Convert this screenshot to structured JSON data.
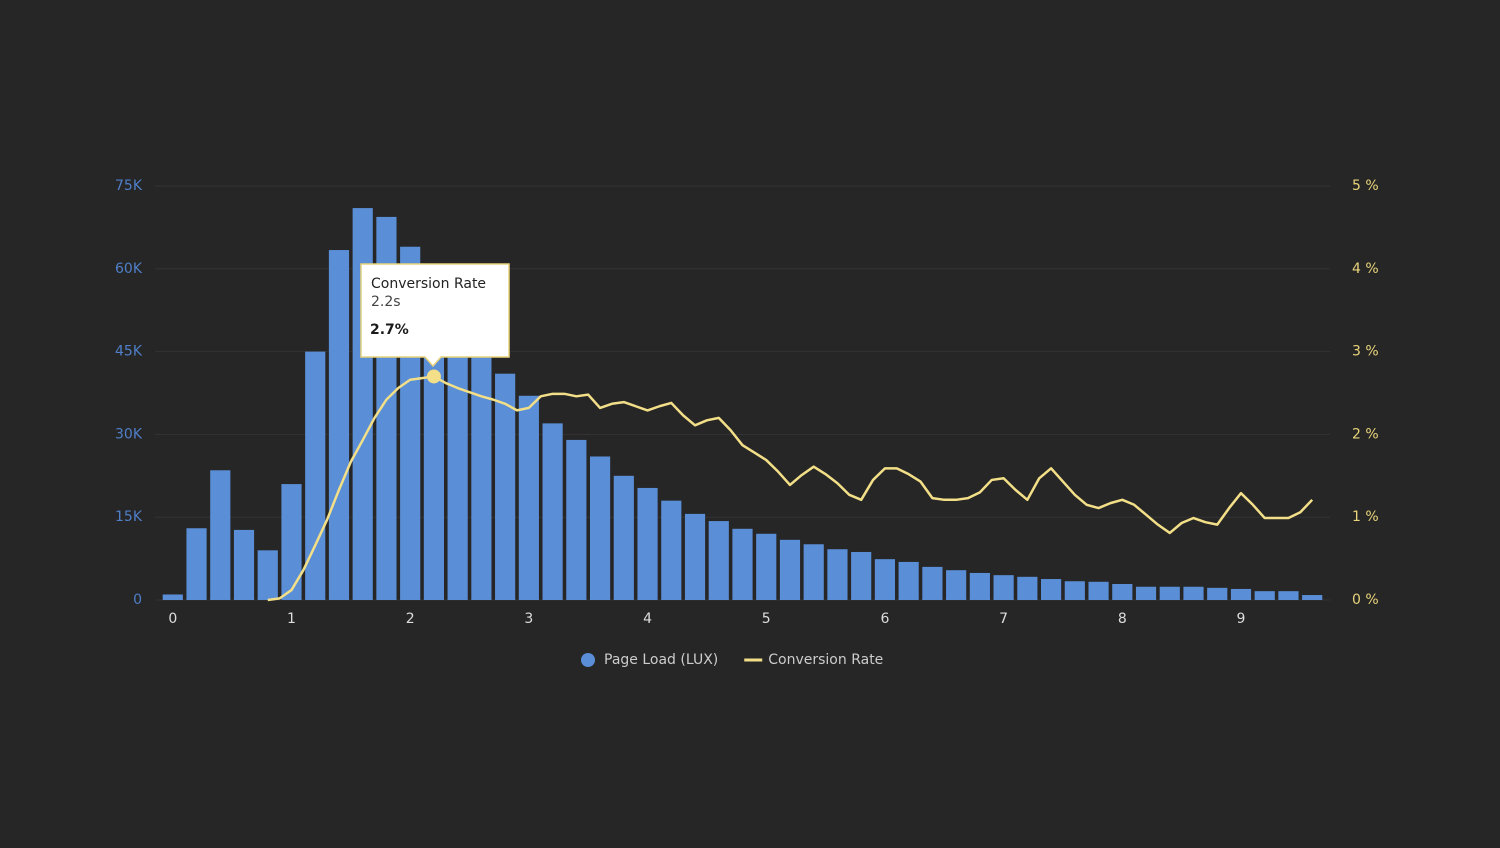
{
  "chart_data": {
    "type": "bar",
    "xlim": [
      -0.15,
      9.75
    ],
    "xticks": [
      0,
      1,
      2,
      3,
      4,
      5,
      6,
      7,
      8,
      9
    ],
    "ylim": [
      0,
      75000
    ],
    "yticks": [
      {
        "value": 0,
        "label": "0"
      },
      {
        "value": 15000,
        "label": "15K"
      },
      {
        "value": 30000,
        "label": "30K"
      },
      {
        "value": 45000,
        "label": "45K"
      },
      {
        "value": 60000,
        "label": "60K"
      },
      {
        "value": 75000,
        "label": "75K"
      }
    ],
    "y2lim": [
      0,
      5
    ],
    "y2ticks": [
      {
        "value": 0,
        "label": "0 %"
      },
      {
        "value": 1,
        "label": "1 %"
      },
      {
        "value": 2,
        "label": "2 %"
      },
      {
        "value": 3,
        "label": "3 %"
      },
      {
        "value": 4,
        "label": "4 %"
      },
      {
        "value": 5,
        "label": "5 %"
      }
    ],
    "grid": true,
    "legend": "bottom",
    "series": [
      {
        "name": "Page Load (LUX)",
        "type": "bar",
        "color": "#5a8ed6",
        "x": [
          0,
          0.2,
          0.4,
          0.6,
          0.8,
          1.0,
          1.2,
          1.4,
          1.6,
          1.8,
          2.0,
          2.2,
          2.4,
          2.6,
          2.8,
          3.0,
          3.2,
          3.4,
          3.6,
          3.8,
          4.0,
          4.2,
          4.4,
          4.6,
          4.8,
          5.0,
          5.2,
          5.4,
          5.6,
          5.8,
          6.0,
          6.2,
          6.4,
          6.6,
          6.8,
          7.0,
          7.2,
          7.4,
          7.6,
          7.8,
          8.0,
          8.2,
          8.4,
          8.6,
          8.8,
          9.0,
          9.2,
          9.4,
          9.6
        ],
        "values": [
          1000,
          13000,
          23500,
          12700,
          9000,
          21000,
          45000,
          63400,
          71000,
          69400,
          64000,
          57000,
          50000,
          45000,
          41000,
          37000,
          32000,
          29000,
          26000,
          22500,
          20300,
          18000,
          15600,
          14300,
          12900,
          12000,
          10900,
          10100,
          9200,
          8700,
          7400,
          6900,
          6000,
          5400,
          4900,
          4500,
          4200,
          3800,
          3400,
          3300,
          2900,
          2400,
          2400,
          2400,
          2200,
          2000,
          1600,
          1600,
          900
        ]
      },
      {
        "name": "Conversion Rate",
        "type": "line",
        "axis": "y2",
        "color": "#f2df88",
        "x": [
          0.8,
          0.9,
          1.0,
          1.1,
          1.2,
          1.3,
          1.4,
          1.5,
          1.6,
          1.7,
          1.8,
          1.9,
          2.0,
          2.1,
          2.2,
          2.3,
          2.4,
          2.5,
          2.6,
          2.7,
          2.8,
          2.9,
          3.0,
          3.1,
          3.2,
          3.3,
          3.4,
          3.5,
          3.6,
          3.7,
          3.8,
          3.9,
          4.0,
          4.1,
          4.2,
          4.3,
          4.4,
          4.5,
          4.6,
          4.7,
          4.8,
          4.9,
          5.0,
          5.1,
          5.2,
          5.3,
          5.4,
          5.5,
          5.6,
          5.7,
          5.8,
          5.9,
          6.0,
          6.1,
          6.2,
          6.3,
          6.4,
          6.5,
          6.6,
          6.7,
          6.8,
          6.9,
          7.0,
          7.1,
          7.2,
          7.3,
          7.4,
          7.5,
          7.6,
          7.7,
          7.8,
          7.9,
          8.0,
          8.1,
          8.2,
          8.3,
          8.4,
          8.5,
          8.6,
          8.7,
          8.8,
          8.9,
          9.0,
          9.1,
          9.2,
          9.3,
          9.4,
          9.5,
          9.6
        ],
        "values": [
          0,
          0.02,
          0.12,
          0.36,
          0.66,
          0.97,
          1.33,
          1.67,
          1.93,
          2.2,
          2.42,
          2.56,
          2.66,
          2.68,
          2.7,
          2.62,
          2.56,
          2.51,
          2.46,
          2.42,
          2.37,
          2.29,
          2.32,
          2.46,
          2.49,
          2.49,
          2.46,
          2.48,
          2.32,
          2.37,
          2.39,
          2.34,
          2.29,
          2.34,
          2.38,
          2.23,
          2.11,
          2.17,
          2.2,
          2.05,
          1.87,
          1.78,
          1.69,
          1.55,
          1.39,
          1.51,
          1.61,
          1.52,
          1.41,
          1.27,
          1.21,
          1.45,
          1.59,
          1.59,
          1.52,
          1.43,
          1.23,
          1.21,
          1.21,
          1.23,
          1.3,
          1.45,
          1.47,
          1.33,
          1.21,
          1.47,
          1.59,
          1.43,
          1.27,
          1.15,
          1.11,
          1.17,
          1.21,
          1.15,
          1.03,
          0.91,
          0.81,
          0.93,
          0.99,
          0.94,
          0.91,
          1.11,
          1.29,
          1.15,
          0.99,
          0.99,
          0.99,
          1.06,
          1.21
        ]
      }
    ],
    "tooltip": {
      "title": "Conversion Rate",
      "x_label": "2.2s",
      "value_label": "2.7%"
    }
  }
}
